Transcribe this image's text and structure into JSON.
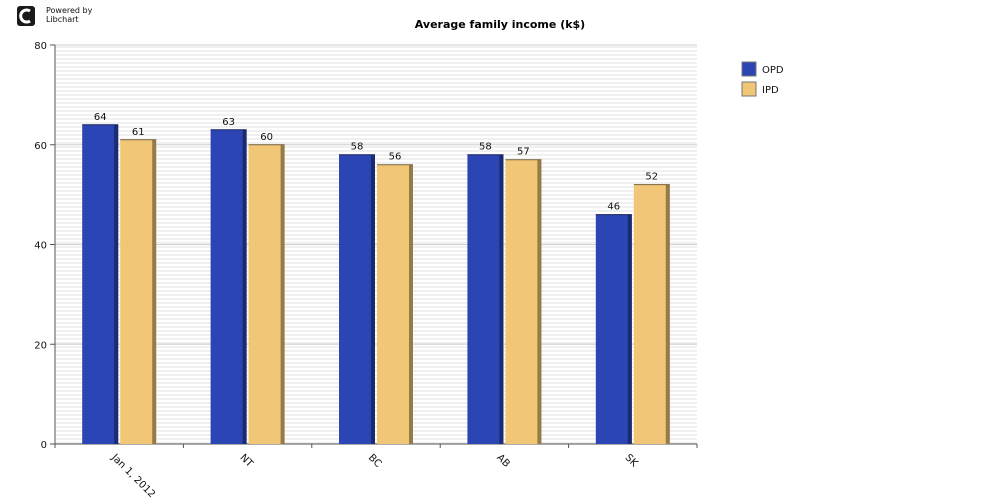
{
  "brand": {
    "line1": "Powered by",
    "line2": "Libchart"
  },
  "chart_data": {
    "type": "bar",
    "title": "Average family income (k$)",
    "categories": [
      "Jan 1, 2012",
      "NT",
      "BC",
      "AB",
      "SK"
    ],
    "series": [
      {
        "name": "OPD",
        "values": [
          64,
          63,
          58,
          58,
          46
        ],
        "color": "#2c45b4"
      },
      {
        "name": "IPD",
        "values": [
          61,
          60,
          56,
          57,
          52
        ],
        "color": "#f2c677"
      }
    ],
    "ylim": [
      0,
      80
    ],
    "yticks": [
      0,
      20,
      40,
      60,
      80
    ],
    "grid": true,
    "legend": "right"
  }
}
